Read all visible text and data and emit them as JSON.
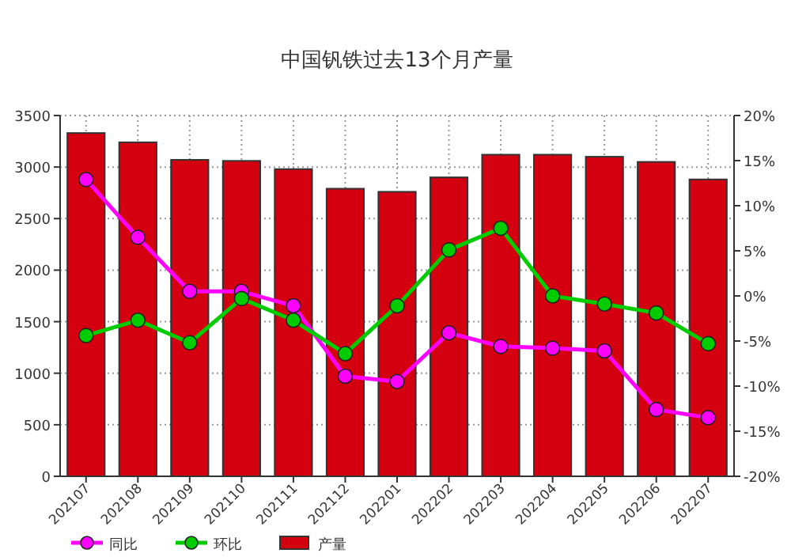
{
  "chart_data": {
    "type": "bar",
    "title": "中国钒铁过去13个月产量",
    "categories": [
      "202107",
      "202108",
      "202109",
      "202110",
      "202111",
      "202112",
      "202201",
      "202202",
      "202203",
      "202204",
      "202205",
      "202206",
      "202207"
    ],
    "series": [
      {
        "name": "产量",
        "color": "#d40010",
        "values": [
          3330,
          3240,
          3070,
          3060,
          2980,
          2790,
          2760,
          2900,
          3120,
          3120,
          3100,
          3050,
          2880
        ]
      },
      {
        "name": "同比",
        "type": "line",
        "axis": "y2",
        "color": "#ff00ff",
        "values": [
          12.9,
          6.5,
          0.5,
          0.5,
          -1.1,
          -8.9,
          -9.5,
          -4.1,
          -5.6,
          -5.8,
          -6.1,
          -12.6,
          -13.5
        ]
      },
      {
        "name": "环比",
        "type": "line",
        "axis": "y2",
        "color": "#00cc00",
        "values": [
          -4.4,
          -2.7,
          -5.2,
          -0.3,
          -2.7,
          -6.4,
          -1.1,
          5.1,
          7.5,
          0,
          -0.9,
          -1.9,
          -5.3
        ]
      }
    ],
    "ylim": [
      0,
      3500
    ],
    "yticks": [
      0,
      500,
      1000,
      1500,
      2000,
      2500,
      3000,
      3500
    ],
    "y2lim": [
      -20,
      20
    ],
    "y2ticks": [
      {
        "value": -20,
        "label": "-20%"
      },
      {
        "value": -15,
        "label": "-15%"
      },
      {
        "value": -10,
        "label": "-10%"
      },
      {
        "value": -5,
        "label": "-5%"
      },
      {
        "value": 0,
        "label": "0%"
      },
      {
        "value": 5,
        "label": "5%"
      },
      {
        "value": 10,
        "label": "10%"
      },
      {
        "value": 15,
        "label": "15%"
      },
      {
        "value": 20,
        "label": "20%"
      }
    ],
    "grid": true,
    "legend": "bottom",
    "marker": "circle"
  }
}
